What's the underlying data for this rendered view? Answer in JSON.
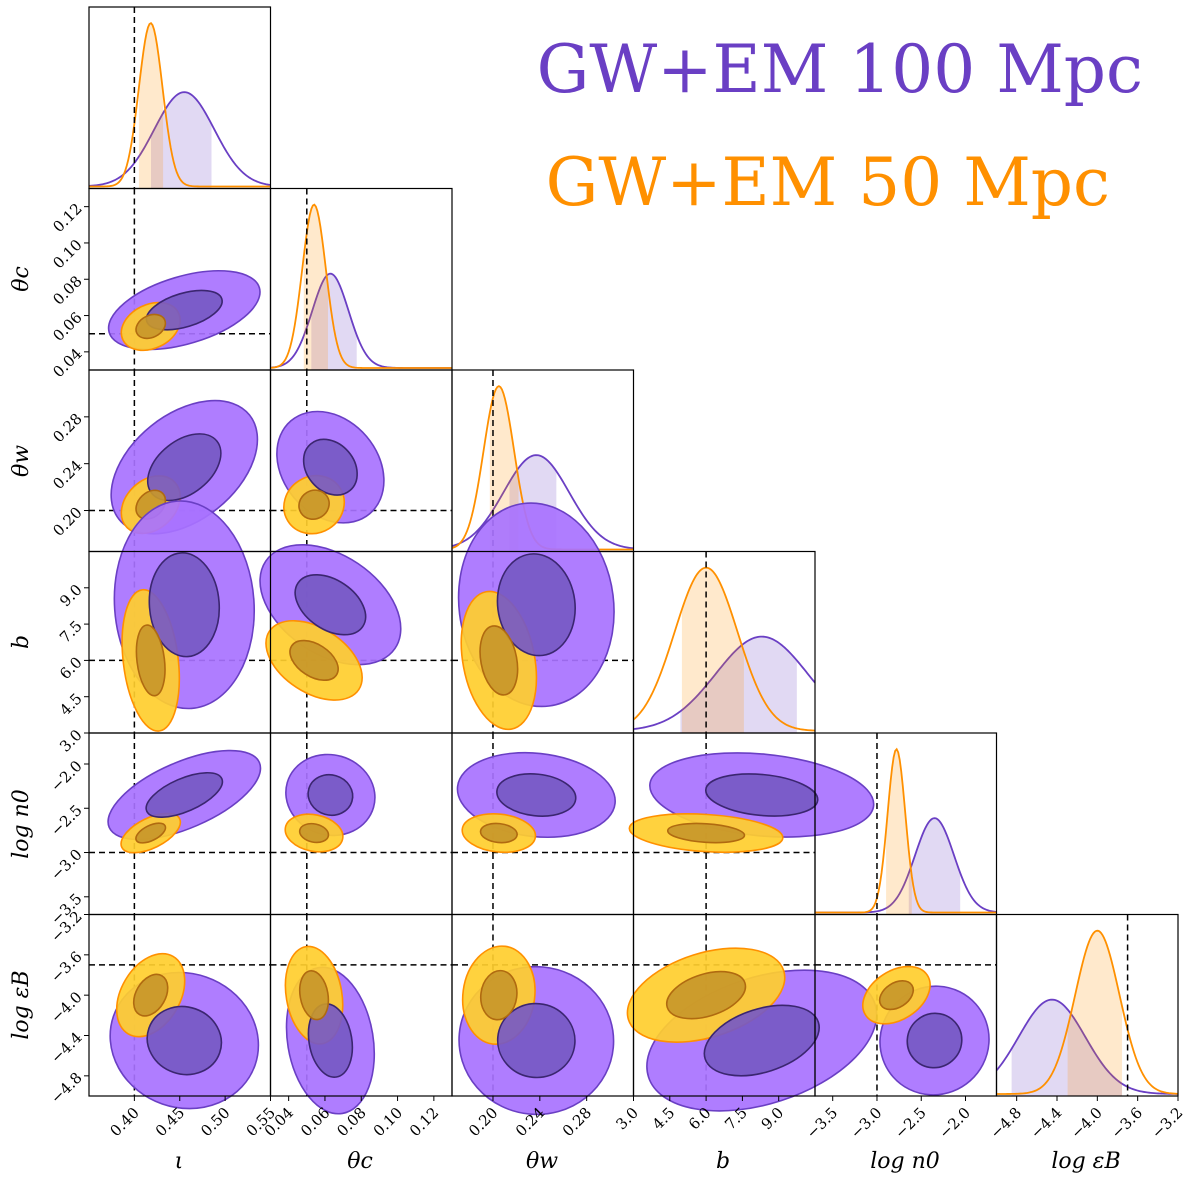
{
  "chart_data": {
    "type": "corner",
    "parameters": [
      {
        "key": "iota",
        "label": "ι",
        "truth": 0.4,
        "range": [
          0.35,
          0.55
        ],
        "ticks": [
          "0.40",
          "0.45",
          "0.50",
          "0.55"
        ]
      },
      {
        "key": "theta_c",
        "label": "θc",
        "truth": 0.05,
        "range": [
          0.03,
          0.13
        ],
        "ticks": [
          "0.04",
          "0.06",
          "0.08",
          "0.10",
          "0.12"
        ]
      },
      {
        "key": "theta_w",
        "label": "θw",
        "truth": 0.2,
        "range": [
          0.165,
          0.32
        ],
        "ticks": [
          "0.20",
          "0.24",
          "0.28"
        ]
      },
      {
        "key": "b",
        "label": "b",
        "truth": 6.0,
        "range": [
          3.0,
          10.5
        ],
        "ticks": [
          "3.0",
          "4.5",
          "6.0",
          "7.5",
          "9.0"
        ]
      },
      {
        "key": "log_n0",
        "label": "log n0",
        "truth": -3.0,
        "range": [
          -3.7,
          -1.65
        ],
        "ticks": [
          "−3.5",
          "−3.0",
          "−2.5",
          "−2.0"
        ]
      },
      {
        "key": "log_epsB",
        "label": "log εB",
        "truth": -3.7,
        "range": [
          -5.0,
          -3.2
        ],
        "ticks": [
          "−4.8",
          "−4.4",
          "−4.0",
          "−3.6",
          "−3.2"
        ]
      }
    ],
    "series": [
      {
        "name": "GW+EM 100 Mpc",
        "color": "#6a3fc4",
        "fill_outer": "#a872ff",
        "fill_inner": "#7659c4",
        "marginal_peaks": [
          0.455,
          0.063,
          0.237,
          8.3,
          -2.35,
          -4.45
        ],
        "marginal_widths": [
          0.033,
          0.01,
          0.028,
          1.9,
          0.22,
          0.33
        ],
        "shaded_intervals": [
          [
            0.418,
            0.485
          ],
          [
            0.052,
            0.078
          ],
          [
            0.214,
            0.255
          ],
          [
            4.9,
            9.8
          ],
          [
            -2.65,
            -2.05
          ],
          [
            -4.85,
            -3.75
          ]
        ]
      },
      {
        "name": "GW+EM 50 Mpc",
        "color": "#ff9000",
        "fill_outer": "#ffce2e",
        "fill_inner": "#c8972a",
        "marginal_peaks": [
          0.418,
          0.054,
          0.205,
          6.0,
          -2.78,
          -4.0
        ],
        "marginal_widths": [
          0.013,
          0.0065,
          0.013,
          1.3,
          0.1,
          0.22
        ],
        "shaded_intervals": [
          [
            0.404,
            0.432
          ],
          [
            0.048,
            0.062
          ],
          [
            0.197,
            0.222
          ],
          [
            5.0,
            7.6
          ],
          [
            -2.9,
            -2.6
          ],
          [
            -4.3,
            -3.75
          ]
        ]
      }
    ]
  },
  "legend": {
    "series_1": "GW+EM 100 Mpc",
    "series_2": "GW+EM 50 Mpc"
  },
  "axis_labels": {
    "x": {
      "iota": "ι",
      "theta_c": "θc",
      "theta_w": "θw",
      "b": "b",
      "log_n0": "log n0",
      "log_epsB": "log εB"
    },
    "y": {
      "theta_c": "θc",
      "theta_w": "θw",
      "b": "b",
      "log_n0": "log n0",
      "log_epsB": "log εB"
    }
  }
}
